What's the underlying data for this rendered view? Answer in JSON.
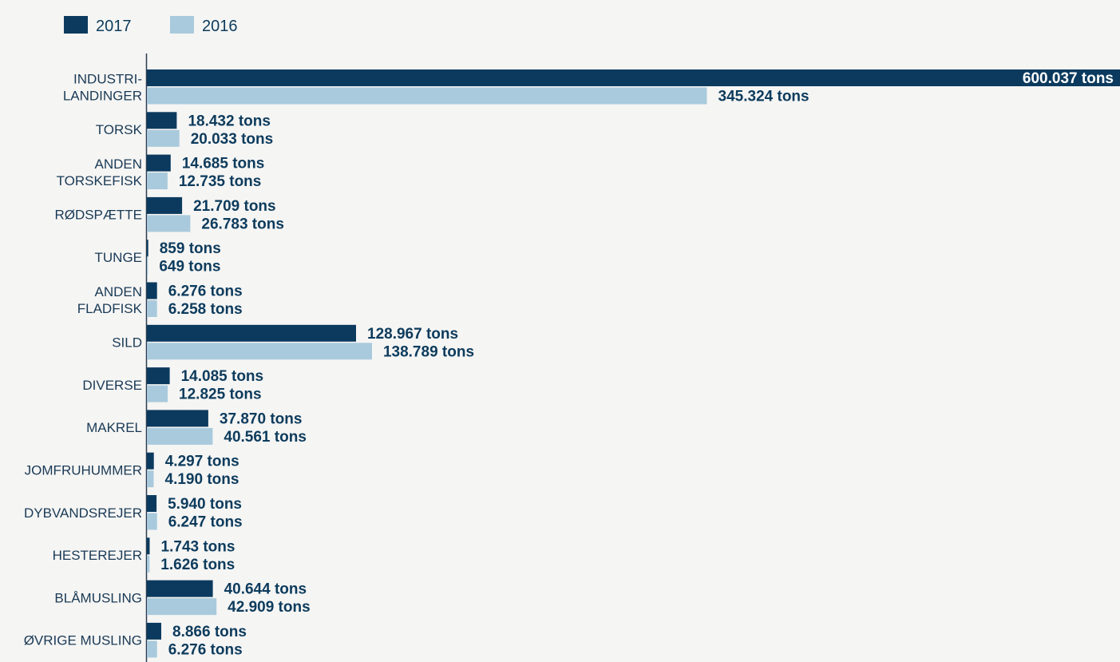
{
  "chart_data": {
    "type": "bar",
    "orientation": "horizontal",
    "legend": {
      "placement": "top-left"
    },
    "xlim": [
      0,
      600037
    ],
    "grid": false,
    "colors": {
      "2017": "#0b3a5e",
      "2016": "#a9cadc"
    },
    "categories": [
      [
        "INDUSTRI-",
        "LANDINGER"
      ],
      [
        "TORSK"
      ],
      [
        "ANDEN",
        "TORSKEFISK"
      ],
      [
        "RØDSPÆTTE"
      ],
      [
        "TUNGE"
      ],
      [
        "ANDEN",
        "FLADFISK"
      ],
      [
        "SILD"
      ],
      [
        "DIVERSE"
      ],
      [
        "MAKREL"
      ],
      [
        "JOMFRUHUMMER"
      ],
      [
        "DYBVANDSREJER"
      ],
      [
        "HESTEREJER"
      ],
      [
        "BLÅMUSLING"
      ],
      [
        "ØVRIGE MUSLING"
      ]
    ],
    "series": [
      {
        "name": "2017",
        "values": [
          600037,
          18432,
          14685,
          21709,
          859,
          6276,
          128967,
          14085,
          37870,
          4297,
          5940,
          1743,
          40644,
          8866
        ],
        "labels": [
          "600.037  tons",
          "18.432  tons",
          "14.685  tons",
          "21.709  tons",
          "859  tons",
          "6.276  tons",
          "128.967  tons",
          "14.085  tons",
          "37.870  tons",
          "4.297  tons",
          "5.940  tons",
          "1.743  tons",
          "40.644  tons",
          "8.866  tons"
        ]
      },
      {
        "name": "2016",
        "values": [
          345324,
          20033,
          12735,
          26783,
          649,
          6258,
          138789,
          12825,
          40561,
          4190,
          6247,
          1626,
          42909,
          6276
        ],
        "labels": [
          "345.324  tons",
          "20.033  tons",
          "12.735 tons",
          "26.783 tons",
          "649 tons",
          "6.258 tons",
          "138.789 tons",
          "12.825 tons",
          "40.561 tons",
          "4.190 tons",
          "6.247 tons",
          "1.626 tons",
          "42.909 tons",
          "6.276  tons"
        ]
      }
    ]
  }
}
